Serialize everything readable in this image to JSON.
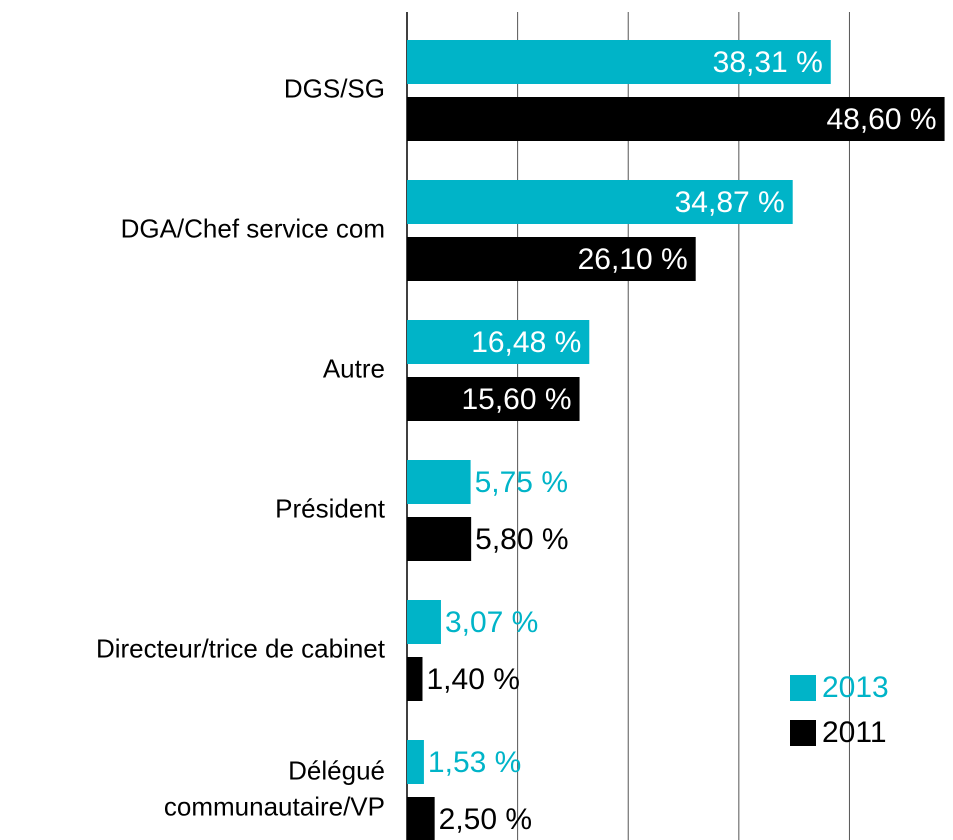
{
  "chart_data": {
    "type": "hbar",
    "categories": [
      "DGS/SG",
      "DGA/Chef service com",
      "Autre",
      "Président",
      "Directeur/trice de cabinet",
      "Délégué\ncommunautaire/VP"
    ],
    "series": [
      {
        "name": "2013",
        "color": "#00b4c8",
        "values": [
          38.31,
          34.87,
          16.48,
          5.75,
          3.07,
          1.53
        ],
        "value_labels": [
          "38,31 %",
          "34,87 %",
          "16,48 %",
          "5,75 %",
          "3,07 %",
          "1,53 %"
        ]
      },
      {
        "name": "2011",
        "color": "#000000",
        "values": [
          48.6,
          26.1,
          15.6,
          5.8,
          1.4,
          2.5
        ],
        "value_labels": [
          "48,60 %",
          "26,10 %",
          "15,60 %",
          "5,80 %",
          "1,40 %",
          "2,50 %"
        ]
      }
    ],
    "xlim": [
      0,
      49
    ],
    "xticks": [
      0,
      10,
      20,
      30,
      40
    ],
    "grid": true,
    "legend": "lower right"
  }
}
